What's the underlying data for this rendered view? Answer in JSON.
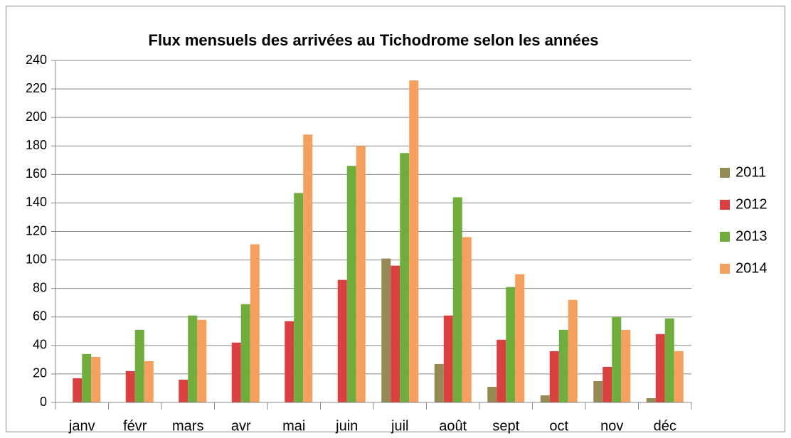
{
  "chart_data": {
    "type": "bar",
    "title": "Flux mensuels des arrivées au Tichodrome selon les années",
    "categories": [
      "janv",
      "févr",
      "mars",
      "avr",
      "mai",
      "juin",
      "juil",
      "août",
      "sept",
      "oct",
      "nov",
      "déc"
    ],
    "series": [
      {
        "name": "2011",
        "color": "#948a54",
        "values": [
          null,
          null,
          null,
          null,
          null,
          null,
          101,
          27,
          11,
          5,
          15,
          3
        ]
      },
      {
        "name": "2012",
        "color": "#d94040",
        "values": [
          17,
          22,
          16,
          42,
          57,
          86,
          96,
          61,
          44,
          36,
          25,
          48
        ]
      },
      {
        "name": "2013",
        "color": "#70ad3c",
        "values": [
          34,
          51,
          61,
          69,
          147,
          166,
          175,
          144,
          81,
          51,
          60,
          59
        ]
      },
      {
        "name": "2014",
        "color": "#f5a05f",
        "values": [
          32,
          29,
          58,
          111,
          188,
          180,
          226,
          116,
          90,
          72,
          51,
          36
        ]
      }
    ],
    "ylim": [
      0,
      240
    ],
    "yticks": [
      0,
      20,
      40,
      60,
      80,
      100,
      120,
      140,
      160,
      180,
      200,
      220,
      240
    ],
    "grid": true,
    "legend": "right"
  }
}
